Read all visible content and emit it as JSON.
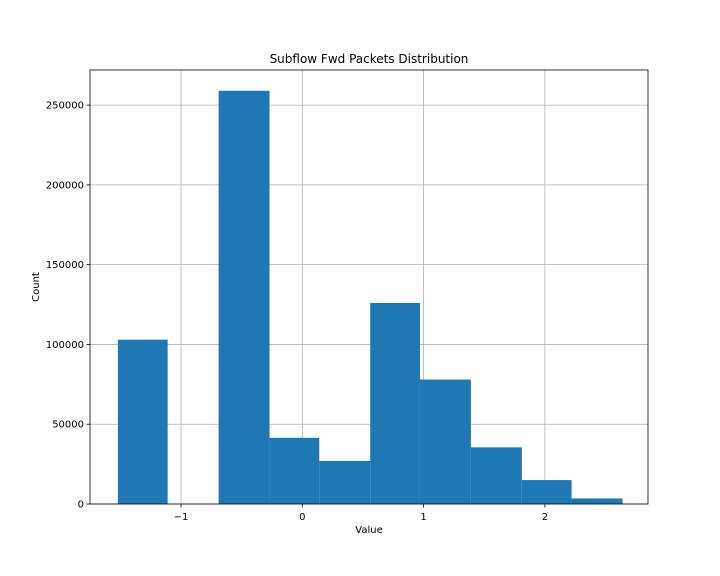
{
  "chart_data": {
    "type": "bar",
    "title": "Subflow Fwd Packets Distribution",
    "xlabel": "Value",
    "ylabel": "Count",
    "xlim": [
      -1.75,
      2.85
    ],
    "ylim": [
      0,
      272000
    ],
    "grid": true,
    "bar_color": "#1f77b4",
    "bins": [
      {
        "x0": -1.52,
        "x1": -1.11,
        "count": 103000
      },
      {
        "x0": -1.11,
        "x1": -0.69,
        "count": 0
      },
      {
        "x0": -0.69,
        "x1": -0.27,
        "count": 259000
      },
      {
        "x0": -0.27,
        "x1": 0.14,
        "count": 41500
      },
      {
        "x0": 0.14,
        "x1": 0.56,
        "count": 27000
      },
      {
        "x0": 0.56,
        "x1": 0.97,
        "count": 126000
      },
      {
        "x0": 0.97,
        "x1": 1.39,
        "count": 78000
      },
      {
        "x0": 1.39,
        "x1": 1.81,
        "count": 35500
      },
      {
        "x0": 1.81,
        "x1": 2.22,
        "count": 15000
      },
      {
        "x0": 2.22,
        "x1": 2.64,
        "count": 3500
      }
    ],
    "xticks": [
      -1,
      0,
      1,
      2
    ],
    "xtick_labels": [
      "−1",
      "0",
      "1",
      "2"
    ],
    "yticks": [
      0,
      50000,
      100000,
      150000,
      200000,
      250000
    ],
    "ytick_labels": [
      "0",
      "50000",
      "100000",
      "150000",
      "200000",
      "250000"
    ]
  }
}
